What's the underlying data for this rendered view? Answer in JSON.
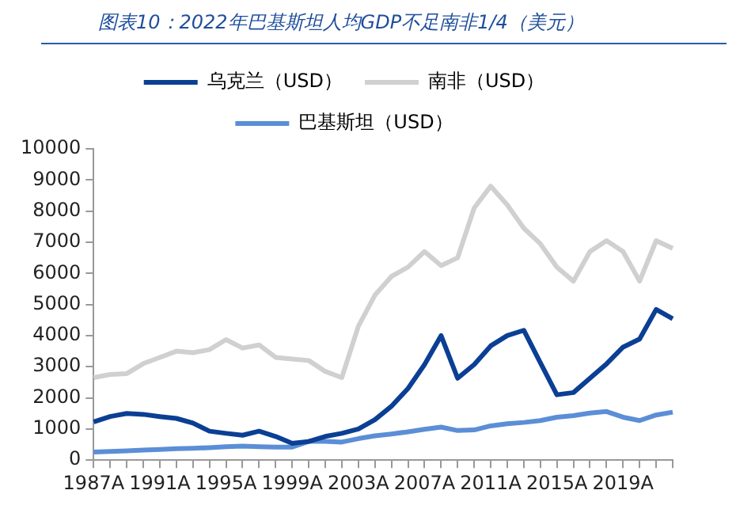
{
  "chart_data": {
    "type": "line",
    "title": "图表10：2022年巴基斯坦人均GDP不足南非1/4（美元）",
    "categories": [
      "1987A",
      null,
      null,
      null,
      "1991A",
      null,
      null,
      null,
      "1995A",
      null,
      null,
      null,
      "1999A",
      null,
      null,
      null,
      "2003A",
      null,
      null,
      null,
      "2007A",
      null,
      null,
      null,
      "2011A",
      null,
      null,
      null,
      "2015A",
      null,
      null,
      null,
      "2019A",
      null,
      null,
      null
    ],
    "series": [
      {
        "name": "乌克兰（USD）",
        "color": "#0b3f94",
        "values": [
          1230,
          1400,
          1500,
          1470,
          1400,
          1340,
          1190,
          930,
          860,
          800,
          930,
          760,
          540,
          600,
          760,
          860,
          1000,
          1300,
          1730,
          2300,
          3070,
          4000,
          2630,
          3070,
          3670,
          4000,
          4170,
          3130,
          2100,
          2170,
          2630,
          3090,
          3630,
          3890,
          4840,
          4540
        ]
      },
      {
        "name": "南非（USD）",
        "color": "#d0d0d0",
        "values": [
          2650,
          2750,
          2780,
          3100,
          3300,
          3500,
          3450,
          3550,
          3870,
          3600,
          3700,
          3300,
          3250,
          3200,
          2850,
          2650,
          4300,
          5300,
          5900,
          6200,
          6700,
          6250,
          6500,
          8100,
          8800,
          8200,
          7450,
          6950,
          6200,
          5750,
          6700,
          7050,
          6700,
          5750,
          7050,
          6800
        ]
      },
      {
        "name": "巴基斯坦（USD）",
        "color": "#5b8ed6",
        "values": [
          260,
          280,
          300,
          320,
          340,
          370,
          380,
          400,
          430,
          450,
          430,
          420,
          420,
          600,
          600,
          580,
          690,
          780,
          840,
          910,
          990,
          1060,
          950,
          970,
          1100,
          1170,
          1210,
          1270,
          1380,
          1430,
          1510,
          1560,
          1380,
          1270,
          1450,
          1540
        ]
      }
    ],
    "ylim": [
      0,
      10000
    ],
    "yticks": [
      0,
      1000,
      2000,
      3000,
      4000,
      5000,
      6000,
      7000,
      8000,
      9000,
      10000
    ],
    "grid": false,
    "legend": "top",
    "marker": "none",
    "line_style": "solid"
  }
}
